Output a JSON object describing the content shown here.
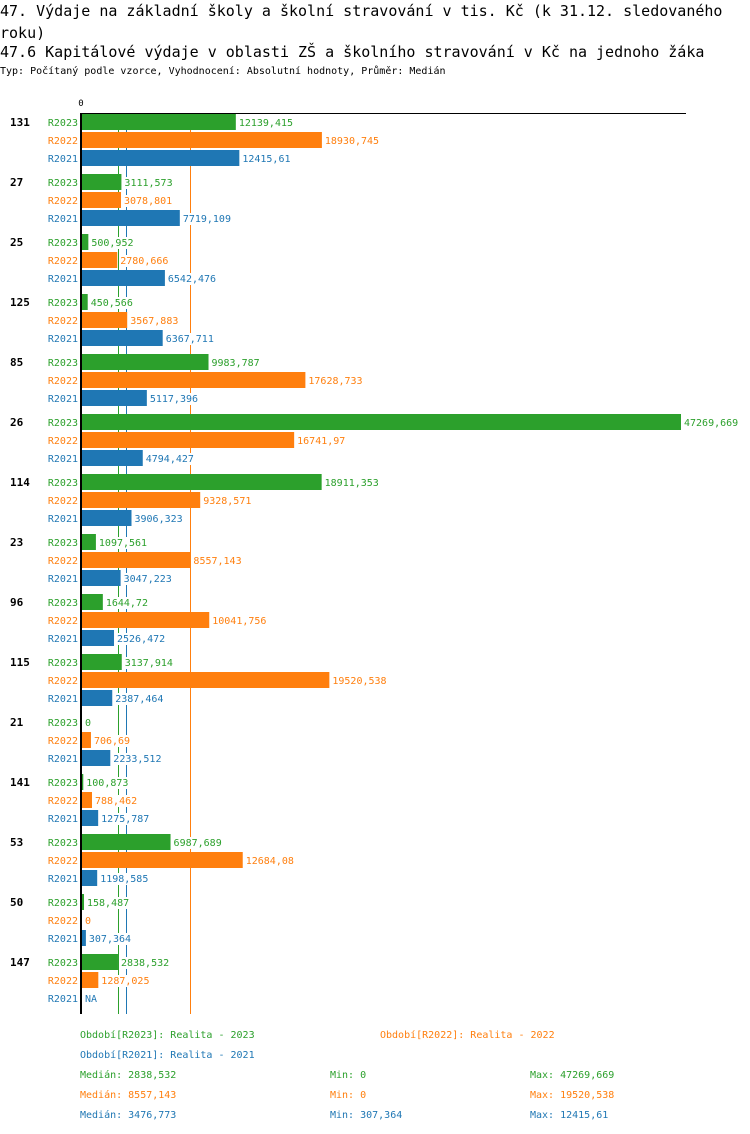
{
  "header": {
    "title_line1": "47. Výdaje na základní školy a školní stravování v tis. Kč (k 31.12. sledovaného",
    "title_line2": "roku)",
    "title_line3": "47.6 Kapitálové výdaje v oblasti ZŠ a školního stravování v Kč na jednoho žáka",
    "subtitle": "Typ: Počítaný podle vzorce, Vyhodnocení: Absolutní hodnoty, Průměr: Medián"
  },
  "chart_data": {
    "type": "bar",
    "orientation": "horizontal",
    "title": "47.6 Kapitálové výdaje v oblasti ZŠ a školního stravování v Kč na jednoho žáka",
    "xlabel": "",
    "ylabel": "",
    "x_tick_labels": [
      "0"
    ],
    "xlim": [
      0,
      47269.669
    ],
    "grid": false,
    "categories": [
      "131",
      "27",
      "25",
      "125",
      "85",
      "26",
      "114",
      "23",
      "96",
      "115",
      "21",
      "141",
      "53",
      "50",
      "147"
    ],
    "series": [
      {
        "name": "R2023",
        "color": "#2ca02c",
        "values": [
          12139.415,
          3111.573,
          500.952,
          450.566,
          9983.787,
          47269.669,
          18911.353,
          1097.561,
          1644.72,
          3137.914,
          0,
          100.873,
          6987.689,
          158.487,
          2838.532
        ],
        "labels": [
          "12139,415",
          "3111,573",
          "500,952",
          "450,566",
          "9983,787",
          "47269,669",
          "18911,353",
          "1097,561",
          "1644,72",
          "3137,914",
          "0",
          "100,873",
          "6987,689",
          "158,487",
          "2838,532"
        ]
      },
      {
        "name": "R2022",
        "color": "#ff7f0e",
        "values": [
          18930.745,
          3078.801,
          2780.666,
          3567.883,
          17628.733,
          16741.97,
          9328.571,
          8557.143,
          10041.756,
          19520.538,
          706.69,
          788.462,
          12684.08,
          0,
          1287.025
        ],
        "labels": [
          "18930,745",
          "3078,801",
          "2780,666",
          "3567,883",
          "17628,733",
          "16741,97",
          "9328,571",
          "8557,143",
          "10041,756",
          "19520,538",
          "706,69",
          "788,462",
          "12684,08",
          "0",
          "1287,025"
        ]
      },
      {
        "name": "R2021",
        "color": "#1f77b4",
        "values": [
          12415.61,
          7719.109,
          6542.476,
          6367.711,
          5117.396,
          4794.427,
          3906.323,
          3047.223,
          2526.472,
          2387.464,
          2233.512,
          1275.787,
          1198.585,
          307.364,
          null
        ],
        "labels": [
          "12415,61",
          "7719,109",
          "6542,476",
          "6367,711",
          "5117,396",
          "4794,427",
          "3906,323",
          "3047,223",
          "2526,472",
          "2387,464",
          "2233,512",
          "1275,787",
          "1198,585",
          "307,364",
          "NA"
        ]
      }
    ],
    "median_lines": [
      {
        "series": "R2023",
        "value": 2838.532,
        "color": "#2ca02c"
      },
      {
        "series": "R2022",
        "value": 8557.143,
        "color": "#ff7f0e"
      },
      {
        "series": "R2021",
        "value": 3476.773,
        "color": "#1f77b4"
      }
    ],
    "legend": {
      "placement": "bottom",
      "entries": [
        {
          "text": "Období[R2023]: Realita - 2023",
          "color": "#2ca02c"
        },
        {
          "text": "Období[R2022]: Realita - 2022",
          "color": "#ff7f0e"
        },
        {
          "text": "Období[R2021]: Realita - 2021",
          "color": "#1f77b4"
        }
      ]
    },
    "stats": [
      {
        "median": "Medián: 2838,532",
        "min": "Min: 0",
        "max": "Max: 47269,669",
        "color": "#2ca02c"
      },
      {
        "median": "Medián: 8557,143",
        "min": "Min: 0",
        "max": "Max: 19520,538",
        "color": "#ff7f0e"
      },
      {
        "median": "Medián: 3476,773",
        "min": "Min: 307,364",
        "max": "Max: 12415,61",
        "color": "#1f77b4"
      }
    ]
  }
}
